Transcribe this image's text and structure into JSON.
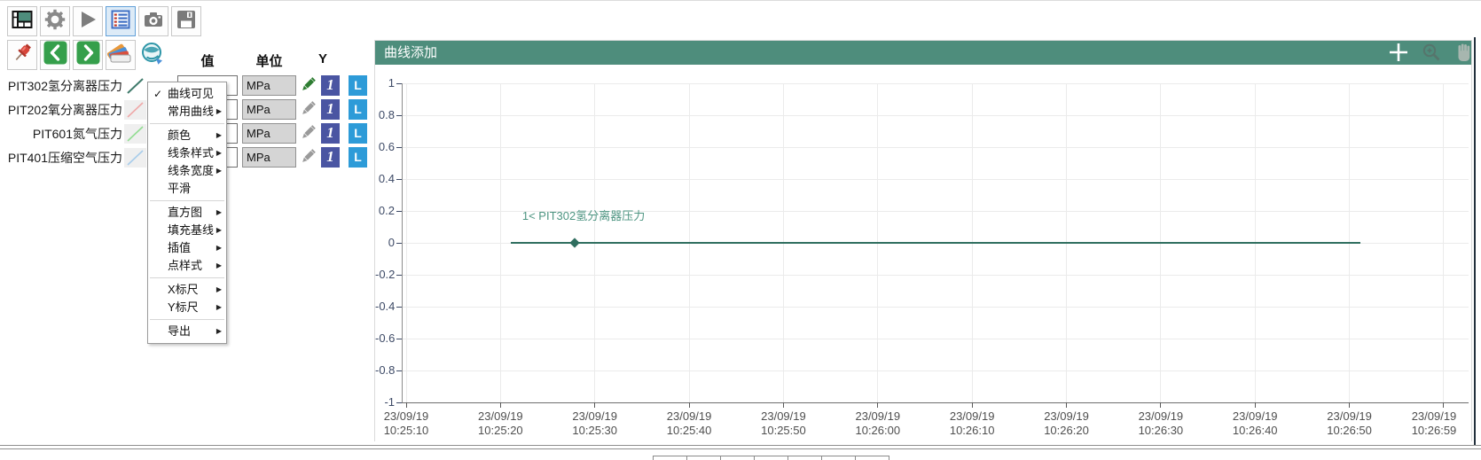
{
  "toolbar": {
    "row1": [
      "layout",
      "settings",
      "run",
      "curve-list",
      "snapshot",
      "save"
    ],
    "selected": "curve-list",
    "row2": [
      "pin",
      "previous",
      "next",
      "palette",
      "refresh-globe"
    ]
  },
  "curve_table": {
    "headers": {
      "value": "值",
      "unit": "单位",
      "y_axis": "Y"
    },
    "colors": {
      "axis_badge_bg": "#4A55A2",
      "scale_badge_bg": "#2D9BD8"
    },
    "rows": [
      {
        "name": "PIT302氢分离器压力",
        "value": "",
        "unit": "MPa",
        "axis": "1",
        "scale": "L",
        "curve_color": "#3F7A6B",
        "pencil_color": "#2E7D32"
      },
      {
        "name": "PIT202氧分离器压力",
        "value": "",
        "unit": "MPa",
        "axis": "1",
        "scale": "L",
        "curve_color": "#EFA8A8",
        "pencil_color": "#9A9A9A"
      },
      {
        "name": "PIT601氮气压力",
        "value": "",
        "unit": "MPa",
        "axis": "1",
        "scale": "L",
        "curve_color": "#93DD93",
        "pencil_color": "#9A9A9A"
      },
      {
        "name": "PIT401压缩空气压力",
        "value": "",
        "unit": "MPa",
        "axis": "1",
        "scale": "L",
        "curve_color": "#A8CDEB",
        "pencil_color": "#9A9A9A"
      }
    ]
  },
  "context_menu": {
    "check_glyph": "✓",
    "submenu_glyph": "▶",
    "items": [
      {
        "label": "曲线可见",
        "checked": true
      },
      {
        "label": "常用曲线",
        "has_submenu": true
      },
      {
        "type": "separator"
      },
      {
        "label": "颜色",
        "has_submenu": true
      },
      {
        "label": "线条样式",
        "has_submenu": true
      },
      {
        "label": "线条宽度",
        "has_submenu": true
      },
      {
        "label": "平滑"
      },
      {
        "type": "separator"
      },
      {
        "label": "直方图",
        "has_submenu": true
      },
      {
        "label": "填充基线",
        "has_submenu": true
      },
      {
        "label": "插值",
        "has_submenu": true
      },
      {
        "label": "点样式",
        "has_submenu": true
      },
      {
        "type": "separator"
      },
      {
        "label": "X标尺",
        "has_submenu": true
      },
      {
        "label": "Y标尺",
        "has_submenu": true
      },
      {
        "type": "separator"
      },
      {
        "label": "导出",
        "has_submenu": true
      }
    ]
  },
  "chart": {
    "title": "曲线添加",
    "header_icons": [
      "crosshair",
      "zoom-in",
      "pan-hand"
    ],
    "annotation": "1<  PIT302氢分离器压力",
    "colors": {
      "header_bg": "#4E8D7C",
      "line": "#2F6E5F",
      "annotation_text": "#4E9582"
    },
    "chart_data": {
      "type": "line",
      "title": "曲线添加",
      "xlabel": "",
      "ylabel": "",
      "ylim": [
        -1,
        1
      ],
      "grid": true,
      "y_ticks": [
        1,
        0.8,
        0.6,
        0.4,
        0.2,
        0,
        -0.2,
        -0.4,
        -0.6,
        -0.8,
        -1
      ],
      "x_ticks": [
        {
          "date": "23/09/19",
          "time": "10:25:10"
        },
        {
          "date": "23/09/19",
          "time": "10:25:20"
        },
        {
          "date": "23/09/19",
          "time": "10:25:30"
        },
        {
          "date": "23/09/19",
          "time": "10:25:40"
        },
        {
          "date": "23/09/19",
          "time": "10:25:50"
        },
        {
          "date": "23/09/19",
          "time": "10:26:00"
        },
        {
          "date": "23/09/19",
          "time": "10:26:10"
        },
        {
          "date": "23/09/19",
          "time": "10:26:20"
        },
        {
          "date": "23/09/19",
          "time": "10:26:30"
        },
        {
          "date": "23/09/19",
          "time": "10:26:40"
        },
        {
          "date": "23/09/19",
          "time": "10:26:50"
        },
        {
          "date": "23/09/19",
          "time": "10:26:59"
        }
      ],
      "series": [
        {
          "name": "PIT302氢分离器压力",
          "value": 0,
          "color": "#2F6E5F",
          "x_frac_start": 0.0985,
          "x_frac_end": 0.898,
          "x_frac_marker": 0.159,
          "x_frac_label": 0.167
        }
      ]
    }
  }
}
